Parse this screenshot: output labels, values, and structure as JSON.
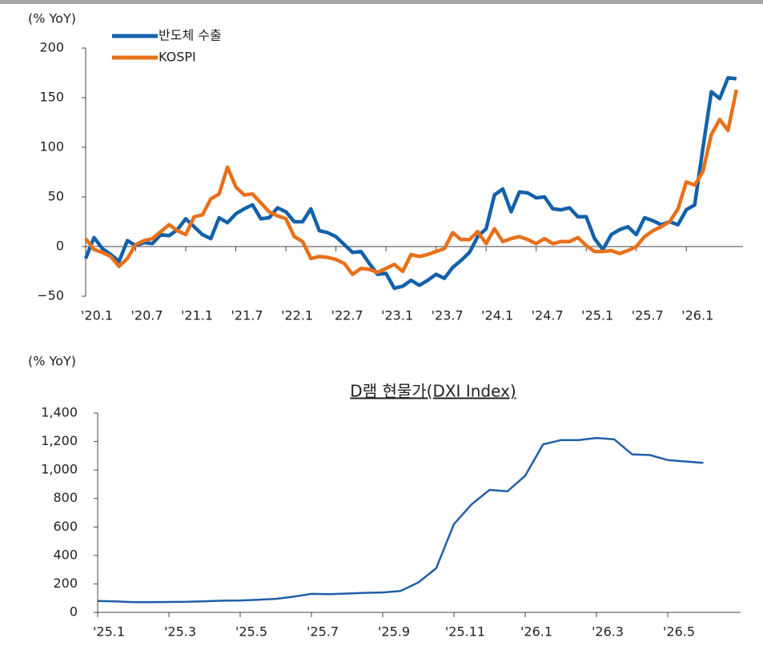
{
  "chart_data": [
    {
      "type": "line",
      "y_label": "(% YoY)",
      "categories": [
        "'20.1",
        null,
        null,
        null,
        null,
        null,
        "'20.7",
        null,
        null,
        null,
        null,
        null,
        "'21.1",
        null,
        null,
        null,
        null,
        null,
        "'21.7",
        null,
        null,
        null,
        null,
        null,
        "'22.1",
        null,
        null,
        null,
        null,
        null,
        "'22.7",
        null,
        null,
        null,
        null,
        null,
        "'23.1",
        null,
        null,
        null,
        null,
        null,
        "'23.7",
        null,
        null,
        null,
        null,
        null,
        "'24.1",
        null,
        null,
        null,
        null,
        null,
        "'24.7",
        null,
        null,
        null,
        null,
        null,
        "'25.1",
        null,
        null,
        null,
        null,
        null,
        "'25.7",
        null,
        null,
        null,
        null,
        null,
        "'26.1",
        null,
        null,
        null,
        null,
        null,
        null
      ],
      "series": [
        {
          "name": "반도체 수출",
          "color": "#1461ab",
          "values": [
            -12,
            9,
            -2,
            -8,
            -15,
            6,
            1,
            4,
            3,
            12,
            11,
            17,
            28,
            20,
            12,
            8,
            29,
            24,
            33,
            38,
            42,
            28,
            29,
            39,
            35,
            25,
            25,
            38,
            16,
            14,
            10,
            2,
            -6,
            -5,
            -17,
            -28,
            -27,
            -42,
            -40,
            -34,
            -39,
            -34,
            -28,
            -32,
            -21,
            -14,
            -6,
            10,
            18,
            52,
            58,
            35,
            55,
            54,
            49,
            50,
            38,
            37,
            39,
            30,
            30,
            8,
            -3,
            12,
            17,
            20,
            12,
            29,
            26,
            22,
            25,
            22,
            37,
            42,
            100,
            156,
            149,
            170,
            169
          ]
        },
        {
          "name": "KOSPI",
          "color": "#e8701a",
          "values": [
            8,
            -3,
            -6,
            -10,
            -20,
            -12,
            2,
            6,
            8,
            15,
            22,
            16,
            12,
            30,
            32,
            48,
            53,
            80,
            60,
            52,
            53,
            44,
            35,
            31,
            28,
            10,
            5,
            -12,
            -10,
            -11,
            -13,
            -17,
            -28,
            -22,
            -23,
            -26,
            -22,
            -18,
            -25,
            -8,
            -10,
            -8,
            -5,
            -2,
            14,
            7,
            7,
            15,
            3,
            18,
            5,
            8,
            10,
            7,
            3,
            8,
            3,
            5,
            5,
            9,
            1,
            -5,
            -5,
            -4,
            -7,
            -4,
            0,
            10,
            16,
            20,
            25,
            38,
            65,
            62,
            76,
            113,
            128,
            117,
            158
          ]
        }
      ],
      "ylim": [
        -50,
        200
      ],
      "yticks": [
        {
          "value": -50,
          "label": "−50"
        },
        0,
        50,
        100,
        150,
        200
      ]
    },
    {
      "type": "line",
      "title": "D램 현물가(DXI Index)",
      "y_label": "(% YoY)",
      "categories": [
        "'25.1",
        null,
        null,
        null,
        "'25.3",
        null,
        null,
        null,
        "'25.5",
        null,
        null,
        null,
        "'25.7",
        null,
        null,
        null,
        "'25.9",
        null,
        null,
        null,
        "'25.11",
        null,
        null,
        null,
        "'26.1",
        null,
        null,
        null,
        "'26.3",
        null,
        null,
        null,
        "'26.5",
        null,
        null,
        null,
        null
      ],
      "series": [
        {
          "color": "#1f5fa8",
          "values": [
            80,
            77,
            72,
            72,
            73,
            74,
            78,
            82,
            84,
            88,
            95,
            110,
            130,
            128,
            132,
            137,
            140,
            150,
            210,
            310,
            620,
            760,
            860,
            850,
            960,
            1180,
            1210,
            1210,
            1225,
            1215,
            1110,
            1105,
            1070,
            1060,
            1050,
            null,
            null
          ]
        }
      ],
      "ylim": [
        0,
        1400
      ],
      "yticks": [
        0,
        200,
        400,
        600,
        800,
        {
          "value": 1000,
          "label": "1,000"
        },
        {
          "value": 1200,
          "label": "1,200"
        },
        {
          "value": 1400,
          "label": "1,400"
        }
      ]
    }
  ]
}
